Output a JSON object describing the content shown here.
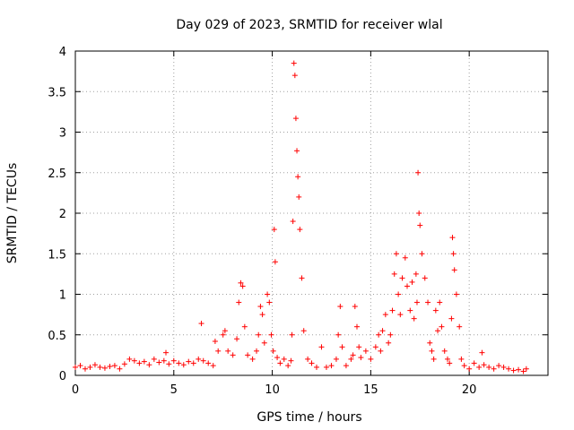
{
  "chart_data": {
    "type": "scatter",
    "title": "Day 029 of 2023, SRMTID for receiver wlal",
    "xlabel": "GPS time / hours",
    "ylabel": "SRMTID / TECUs",
    "xlim": [
      0,
      24
    ],
    "ylim": [
      0,
      4
    ],
    "grid": true,
    "marker": "+",
    "color": "#ff0000",
    "x_ticks": [
      {
        "value": 0,
        "label": "0"
      },
      {
        "value": 5,
        "label": "5"
      },
      {
        "value": 10,
        "label": "10"
      },
      {
        "value": 15,
        "label": "15"
      },
      {
        "value": 20,
        "label": "20"
      }
    ],
    "y_ticks": [
      {
        "value": 0,
        "label": "0"
      },
      {
        "value": 0.5,
        "label": "0.5"
      },
      {
        "value": 1,
        "label": "1"
      },
      {
        "value": 1.5,
        "label": "1.5"
      },
      {
        "value": 2,
        "label": "2"
      },
      {
        "value": 2.5,
        "label": "2.5"
      },
      {
        "value": 3,
        "label": "3"
      },
      {
        "value": 3.5,
        "label": "3.5"
      },
      {
        "value": 4,
        "label": "4"
      }
    ],
    "series": [
      {
        "name": "wlal",
        "x": [
          0.0,
          0.25,
          0.5,
          0.75,
          1.0,
          1.25,
          1.5,
          1.75,
          2.0,
          2.25,
          2.5,
          2.75,
          3.0,
          3.25,
          3.5,
          3.75,
          4.0,
          4.25,
          4.5,
          4.6,
          4.75,
          5.0,
          5.25,
          5.5,
          5.75,
          6.0,
          6.25,
          6.4,
          6.5,
          6.75,
          7.0,
          7.1,
          7.25,
          7.5,
          7.6,
          7.75,
          8.0,
          8.2,
          8.3,
          8.4,
          8.5,
          8.6,
          8.75,
          9.0,
          9.2,
          9.3,
          9.4,
          9.5,
          9.6,
          9.75,
          9.85,
          9.95,
          10.05,
          10.1,
          10.15,
          10.25,
          10.4,
          10.6,
          10.8,
          10.95,
          11.0,
          11.05,
          11.1,
          11.15,
          11.2,
          11.25,
          11.3,
          11.35,
          11.4,
          11.5,
          11.6,
          11.8,
          12.0,
          12.25,
          12.5,
          12.75,
          13.0,
          13.25,
          13.35,
          13.45,
          13.55,
          13.75,
          14.0,
          14.1,
          14.2,
          14.3,
          14.4,
          14.5,
          14.75,
          15.0,
          15.25,
          15.4,
          15.5,
          15.6,
          15.75,
          15.9,
          16.0,
          16.1,
          16.2,
          16.3,
          16.4,
          16.5,
          16.6,
          16.75,
          16.85,
          17.0,
          17.1,
          17.2,
          17.3,
          17.35,
          17.4,
          17.45,
          17.5,
          17.6,
          17.75,
          17.9,
          18.0,
          18.1,
          18.2,
          18.3,
          18.4,
          18.5,
          18.6,
          18.75,
          18.9,
          19.0,
          19.1,
          19.15,
          19.2,
          19.25,
          19.35,
          19.5,
          19.6,
          19.75,
          20.0,
          20.25,
          20.5,
          20.65,
          20.75,
          21.0,
          21.25,
          21.5,
          21.75,
          22.0,
          22.25,
          22.5,
          22.75,
          22.9
        ],
        "y": [
          0.1,
          0.12,
          0.08,
          0.1,
          0.13,
          0.1,
          0.09,
          0.11,
          0.12,
          0.08,
          0.14,
          0.2,
          0.18,
          0.15,
          0.17,
          0.13,
          0.2,
          0.16,
          0.18,
          0.28,
          0.14,
          0.18,
          0.15,
          0.13,
          0.17,
          0.15,
          0.2,
          0.64,
          0.18,
          0.15,
          0.12,
          0.42,
          0.3,
          0.5,
          0.55,
          0.3,
          0.25,
          0.45,
          0.9,
          1.14,
          1.1,
          0.6,
          0.25,
          0.2,
          0.3,
          0.5,
          0.85,
          0.75,
          0.4,
          1.0,
          0.9,
          0.5,
          0.3,
          1.8,
          1.4,
          0.22,
          0.15,
          0.2,
          0.12,
          0.18,
          0.5,
          1.9,
          3.85,
          3.7,
          3.17,
          2.77,
          2.45,
          2.2,
          1.8,
          1.2,
          0.55,
          0.2,
          0.15,
          0.1,
          0.35,
          0.1,
          0.12,
          0.2,
          0.5,
          0.85,
          0.35,
          0.12,
          0.2,
          0.25,
          0.85,
          0.6,
          0.35,
          0.22,
          0.3,
          0.2,
          0.35,
          0.5,
          0.3,
          0.55,
          0.75,
          0.4,
          0.5,
          0.8,
          1.25,
          1.5,
          1.0,
          0.75,
          1.2,
          1.45,
          1.1,
          0.8,
          1.15,
          0.7,
          1.25,
          0.9,
          2.5,
          2.0,
          1.85,
          1.5,
          1.2,
          0.9,
          0.4,
          0.3,
          0.2,
          0.8,
          0.55,
          0.9,
          0.6,
          0.3,
          0.2,
          0.15,
          0.7,
          1.7,
          1.5,
          1.3,
          1.0,
          0.6,
          0.2,
          0.12,
          0.08,
          0.15,
          0.1,
          0.28,
          0.13,
          0.1,
          0.08,
          0.12,
          0.1,
          0.08,
          0.06,
          0.07,
          0.05,
          0.08
        ]
      }
    ]
  }
}
